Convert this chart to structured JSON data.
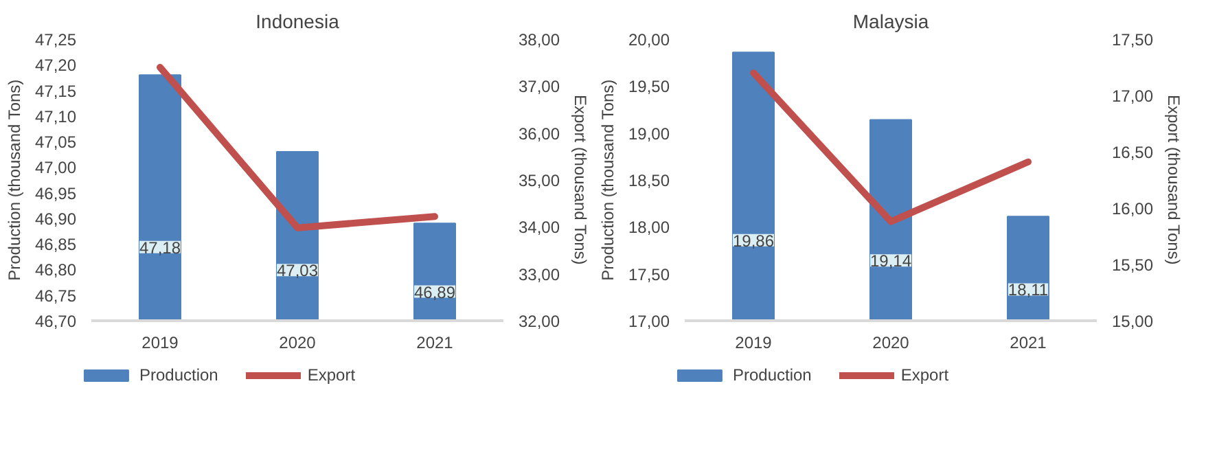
{
  "chart_data": [
    {
      "type": "bar",
      "title": "Indonesia",
      "ylabel": "Production (thousand Tons)",
      "y2label": "Export (thousand Tons)",
      "categories": [
        "2019",
        "2020",
        "2021"
      ],
      "series": [
        {
          "name": "Production",
          "color": "#4f81bd",
          "values": [
            47.18,
            47.03,
            46.89
          ],
          "value_labels": [
            "47,18",
            "47,03",
            "46,89"
          ]
        },
        {
          "name": "Export",
          "type": "line",
          "axis": "y2",
          "color": "#c0504d",
          "values": [
            37.4,
            33.98,
            34.22
          ]
        }
      ],
      "ylim": [
        46.7,
        47.25
      ],
      "yticks": [
        {
          "value": 46.7,
          "label": "46,70"
        },
        {
          "value": 46.75,
          "label": "46,75"
        },
        {
          "value": 46.8,
          "label": "46,80"
        },
        {
          "value": 46.85,
          "label": "46,85"
        },
        {
          "value": 46.9,
          "label": "46,90"
        },
        {
          "value": 46.95,
          "label": "46,95"
        },
        {
          "value": 47.0,
          "label": "47,00"
        },
        {
          "value": 47.05,
          "label": "47,05"
        },
        {
          "value": 47.1,
          "label": "47,10"
        },
        {
          "value": 47.15,
          "label": "47,15"
        },
        {
          "value": 47.2,
          "label": "47,20"
        },
        {
          "value": 47.25,
          "label": "47,25"
        }
      ],
      "y2lim": [
        32,
        38
      ],
      "y2ticks": [
        {
          "value": 32,
          "label": "32,00"
        },
        {
          "value": 33,
          "label": "33,00"
        },
        {
          "value": 34,
          "label": "34,00"
        },
        {
          "value": 35,
          "label": "35,00"
        },
        {
          "value": 36,
          "label": "36,00"
        },
        {
          "value": 37,
          "label": "37,00"
        },
        {
          "value": 38,
          "label": "38,00"
        }
      ],
      "legend": "bottom"
    },
    {
      "type": "bar",
      "title": "Malaysia",
      "ylabel": "Production (thousand Tons)",
      "y2label": "Export (thousand Tons)",
      "categories": [
        "2019",
        "2020",
        "2021"
      ],
      "series": [
        {
          "name": "Production",
          "color": "#4f81bd",
          "values": [
            19.86,
            19.14,
            18.11
          ],
          "value_labels": [
            "19,86",
            "19,14",
            "18,11"
          ]
        },
        {
          "name": "Export",
          "type": "line",
          "axis": "y2",
          "color": "#c0504d",
          "values": [
            17.2,
            15.88,
            16.41
          ]
        }
      ],
      "ylim": [
        17,
        20
      ],
      "yticks": [
        {
          "value": 17,
          "label": "17,00"
        },
        {
          "value": 17.5,
          "label": "17,50"
        },
        {
          "value": 18,
          "label": "18,00"
        },
        {
          "value": 18.5,
          "label": "18,50"
        },
        {
          "value": 19,
          "label": "19,00"
        },
        {
          "value": 19.5,
          "label": "19,50"
        },
        {
          "value": 20,
          "label": "20,00"
        }
      ],
      "y2lim": [
        15,
        17.5
      ],
      "y2ticks": [
        {
          "value": 15,
          "label": "15,00"
        },
        {
          "value": 15.5,
          "label": "15,50"
        },
        {
          "value": 16,
          "label": "16,00"
        },
        {
          "value": 16.5,
          "label": "16,50"
        },
        {
          "value": 17,
          "label": "17,00"
        },
        {
          "value": 17.5,
          "label": "17,50"
        }
      ],
      "legend": "bottom"
    }
  ]
}
